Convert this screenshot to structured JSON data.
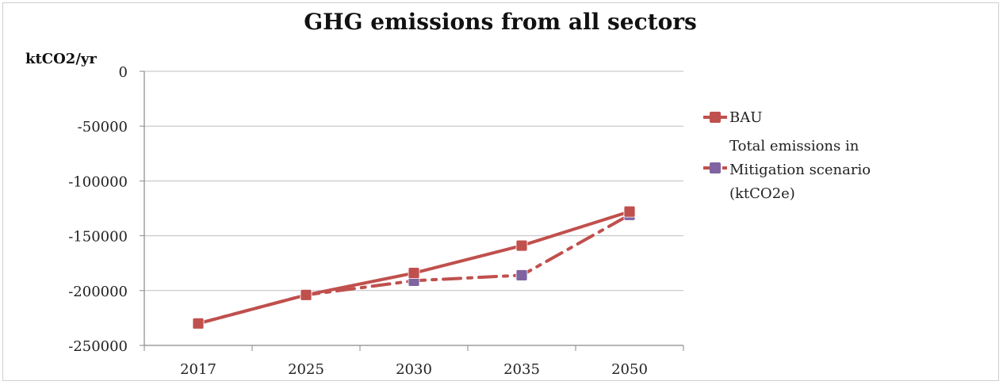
{
  "chart_data": {
    "type": "line",
    "title": "GHG emissions  from all sectors",
    "ylabel": "ktCO2/yr",
    "xlabel": "",
    "categories": [
      "2017",
      "2025",
      "2030",
      "2035",
      "2050"
    ],
    "ylim": [
      -250000,
      0
    ],
    "yticks": [
      0,
      -50000,
      -100000,
      -150000,
      -200000,
      -250000
    ],
    "grid": true,
    "legend_position": "right",
    "series": [
      {
        "name": "BAU",
        "values": [
          -230000,
          -204000,
          -184000,
          -159000,
          -128000
        ],
        "color": "#c0504d",
        "line_style": "solid"
      },
      {
        "name": "Total emissions in Mitigation scenario (ktCO2e)",
        "legend_lines": [
          "Total emissions in",
          "Mitigation scenario",
          "(ktCO2e)"
        ],
        "values": [
          -230000,
          -204000,
          -191000,
          -186000,
          -131000
        ],
        "color": "#c0504d",
        "marker_color": "#8064a2",
        "line_style": "dashdot"
      }
    ]
  }
}
